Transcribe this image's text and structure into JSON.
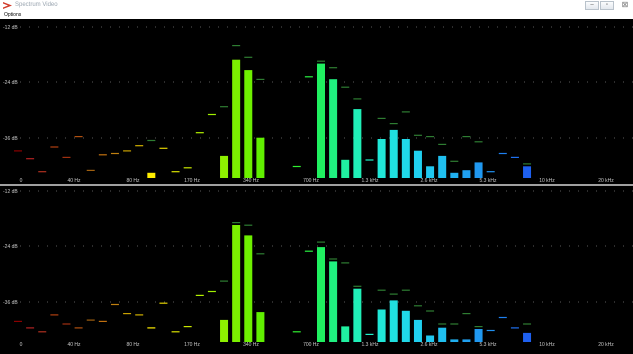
{
  "window": {
    "title": "Spectrum Video",
    "minimize_glyph": "–",
    "maximize_glyph": "▫",
    "close_glyph": "⊠",
    "icon": "app-logo-icon"
  },
  "menu": {
    "items": [
      "Options"
    ]
  },
  "colors": {
    "background": "#000000",
    "grid": "#b4b4b4",
    "peak": "#2e7d32"
  },
  "chart_data": [
    {
      "type": "bar",
      "title": "",
      "db_labels": [
        "-12 dB",
        "-24 dB",
        "-36 dB"
      ],
      "freq_labels": [
        "0",
        "40 Hz",
        "80 Hz",
        "170 Hz",
        "340 Hz",
        "700 Hz",
        "1.3 kHz",
        "2.6 kHz",
        "5.3 kHz",
        "10 kHz",
        "20 kHz"
      ],
      "bands": [
        {
          "level": 0,
          "peak": 0.19,
          "color": "#8b0000"
        },
        {
          "level": 0,
          "peak": 0.13,
          "color": "#b22222"
        },
        {
          "level": 0,
          "peak": 0.03,
          "color": "#b03020"
        },
        {
          "level": 0,
          "peak": 0.22,
          "color": "#b04010"
        },
        {
          "level": 0,
          "peak": 0.14,
          "color": "#a03010"
        },
        {
          "level": 0,
          "peak": 0.3,
          "color": "#b05010"
        },
        {
          "level": 0,
          "peak": 0.04,
          "color": "#a06010"
        },
        {
          "level": 0,
          "peak": 0.16,
          "color": "#c07010"
        },
        {
          "level": 0,
          "peak": 0.17,
          "color": "#c08010"
        },
        {
          "level": 0,
          "peak": 0.19,
          "color": "#c8a000"
        },
        {
          "level": 0,
          "peak": 0.23,
          "color": "#d0b000"
        },
        {
          "level": 0.04,
          "peak": 0.27,
          "color": "#ffee00"
        },
        {
          "level": 0,
          "peak": 0.21,
          "color": "#e0d000"
        },
        {
          "level": 0,
          "peak": 0.03,
          "color": "#d8e000"
        },
        {
          "level": 0,
          "peak": 0.06,
          "color": "#c8e600"
        },
        {
          "level": 0,
          "peak": 0.33,
          "color": "#b2f000"
        },
        {
          "level": 0,
          "peak": 0.47,
          "color": "#a0f000"
        },
        {
          "level": 0.17,
          "peak": 0.53,
          "color": "#8ef000"
        },
        {
          "level": 0.91,
          "peak": 1.0,
          "color": "#7cf000"
        },
        {
          "level": 0.83,
          "peak": 0.91,
          "color": "#6ef000"
        },
        {
          "level": 0.31,
          "peak": 0.74,
          "color": "#60f000"
        },
        {
          "level": 0,
          "peak": 0.0,
          "color": "#50f000"
        },
        {
          "level": 0,
          "peak": 0.0,
          "color": "#40f010"
        },
        {
          "level": 0,
          "peak": 0.07,
          "color": "#30f030"
        },
        {
          "level": 0,
          "peak": 0.76,
          "color": "#28f040"
        },
        {
          "level": 0.88,
          "peak": 0.88,
          "color": "#20f060"
        },
        {
          "level": 0.76,
          "peak": 0.83,
          "color": "#20f080"
        },
        {
          "level": 0.14,
          "peak": 0.68,
          "color": "#20f0a0"
        },
        {
          "level": 0.53,
          "peak": 0.59,
          "color": "#20f0b8"
        },
        {
          "level": 0,
          "peak": 0.12,
          "color": "#20f0c8"
        },
        {
          "level": 0.3,
          "peak": 0.44,
          "color": "#20e8d8"
        },
        {
          "level": 0.37,
          "peak": 0.4,
          "color": "#20e0e0"
        },
        {
          "level": 0.3,
          "peak": 0.49,
          "color": "#20d8e8"
        },
        {
          "level": 0.21,
          "peak": 0.31,
          "color": "#20d0f0"
        },
        {
          "level": 0.09,
          "peak": 0.3,
          "color": "#20c8f0"
        },
        {
          "level": 0.17,
          "peak": 0.24,
          "color": "#20c0f0"
        },
        {
          "level": 0.04,
          "peak": 0.11,
          "color": "#20b0f0"
        },
        {
          "level": 0.06,
          "peak": 0.3,
          "color": "#20a0f0"
        },
        {
          "level": 0.12,
          "peak": 0.26,
          "color": "#2098f0"
        },
        {
          "level": 0,
          "peak": 0.03,
          "color": "#2090f0"
        },
        {
          "level": 0,
          "peak": 0.17,
          "color": "#1e80f0"
        },
        {
          "level": 0,
          "peak": 0.14,
          "color": "#1e70f0"
        },
        {
          "level": 0.09,
          "peak": 0.09,
          "color": "#1e60f0"
        },
        {
          "level": 0,
          "peak": 0.0,
          "color": "#1e50f0"
        },
        {
          "level": 0,
          "peak": 0.0,
          "color": "#1e40f0"
        },
        {
          "level": 0,
          "peak": 0.0,
          "color": "#1e30f0"
        },
        {
          "level": 0,
          "peak": 0.0,
          "color": "#1e20f0"
        },
        {
          "level": 0,
          "peak": 0.0,
          "color": "#2020e0"
        }
      ]
    },
    {
      "type": "bar",
      "title": "",
      "db_labels": [
        "-12 dB",
        "-24 dB",
        "-36 dB"
      ],
      "freq_labels": [
        "0",
        "40 Hz",
        "80 Hz",
        "170 Hz",
        "340 Hz",
        "700 Hz",
        "1.3 kHz",
        "2.6 kHz",
        "5.3 kHz",
        "10 kHz",
        "20 kHz"
      ],
      "bands": [
        {
          "level": 0,
          "peak": 0.14,
          "color": "#8b0000"
        },
        {
          "level": 0,
          "peak": 0.09,
          "color": "#b22222"
        },
        {
          "level": 0,
          "peak": 0.06,
          "color": "#b03020"
        },
        {
          "level": 0,
          "peak": 0.19,
          "color": "#b04010"
        },
        {
          "level": 0,
          "peak": 0.12,
          "color": "#a03010"
        },
        {
          "level": 0,
          "peak": 0.09,
          "color": "#b05010"
        },
        {
          "level": 0,
          "peak": 0.15,
          "color": "#a06010"
        },
        {
          "level": 0,
          "peak": 0.14,
          "color": "#c07010"
        },
        {
          "level": 0,
          "peak": 0.27,
          "color": "#c08010"
        },
        {
          "level": 0,
          "peak": 0.2,
          "color": "#c8a000"
        },
        {
          "level": 0,
          "peak": 0.19,
          "color": "#d0b000"
        },
        {
          "level": 0,
          "peak": 0.09,
          "color": "#ffee00"
        },
        {
          "level": 0,
          "peak": 0.28,
          "color": "#e0d000"
        },
        {
          "level": 0,
          "peak": 0.06,
          "color": "#d8e000"
        },
        {
          "level": 0,
          "peak": 0.1,
          "color": "#c8e600"
        },
        {
          "level": 0,
          "peak": 0.34,
          "color": "#b2f000"
        },
        {
          "level": 0,
          "peak": 0.37,
          "color": "#a0f000"
        },
        {
          "level": 0.17,
          "peak": 0.45,
          "color": "#8ef000"
        },
        {
          "level": 0.9,
          "peak": 0.9,
          "color": "#7cf000"
        },
        {
          "level": 0.82,
          "peak": 0.88,
          "color": "#6ef000"
        },
        {
          "level": 0.23,
          "peak": 0.66,
          "color": "#60f000"
        },
        {
          "level": 0,
          "peak": 0.0,
          "color": "#50f000"
        },
        {
          "level": 0,
          "peak": 0.0,
          "color": "#40f010"
        },
        {
          "level": 0,
          "peak": 0.06,
          "color": "#30f030"
        },
        {
          "level": 0,
          "peak": 0.68,
          "color": "#28f040"
        },
        {
          "level": 0.73,
          "peak": 0.75,
          "color": "#20f060"
        },
        {
          "level": 0.62,
          "peak": 0.62,
          "color": "#20f080"
        },
        {
          "level": 0.12,
          "peak": 0.59,
          "color": "#20f0a0"
        },
        {
          "level": 0.41,
          "peak": 0.41,
          "color": "#20f0b8"
        },
        {
          "level": 0,
          "peak": 0.04,
          "color": "#20f0c8"
        },
        {
          "level": 0.25,
          "peak": 0.38,
          "color": "#20e8d8"
        },
        {
          "level": 0.32,
          "peak": 0.35,
          "color": "#20e0e0"
        },
        {
          "level": 0.24,
          "peak": 0.38,
          "color": "#20d8e8"
        },
        {
          "level": 0.17,
          "peak": 0.26,
          "color": "#20d0f0"
        },
        {
          "level": 0.05,
          "peak": 0.22,
          "color": "#20c8f0"
        },
        {
          "level": 0.11,
          "peak": 0.12,
          "color": "#20c0f0"
        },
        {
          "level": 0.02,
          "peak": 0.12,
          "color": "#20b0f0"
        },
        {
          "level": 0.02,
          "peak": 0.2,
          "color": "#20a0f0"
        },
        {
          "level": 0.1,
          "peak": 0.1,
          "color": "#2098f0"
        },
        {
          "level": 0,
          "peak": 0.07,
          "color": "#2090f0"
        },
        {
          "level": 0,
          "peak": 0.17,
          "color": "#1e80f0"
        },
        {
          "level": 0,
          "peak": 0.09,
          "color": "#1e70f0"
        },
        {
          "level": 0.07,
          "peak": 0.12,
          "color": "#1e60f0"
        },
        {
          "level": 0,
          "peak": 0.0,
          "color": "#1e50f0"
        },
        {
          "level": 0,
          "peak": 0.0,
          "color": "#1e40f0"
        },
        {
          "level": 0,
          "peak": 0.0,
          "color": "#1e30f0"
        },
        {
          "level": 0,
          "peak": 0.0,
          "color": "#1e20f0"
        },
        {
          "level": 0,
          "peak": 0.0,
          "color": "#2020e0"
        }
      ]
    }
  ]
}
